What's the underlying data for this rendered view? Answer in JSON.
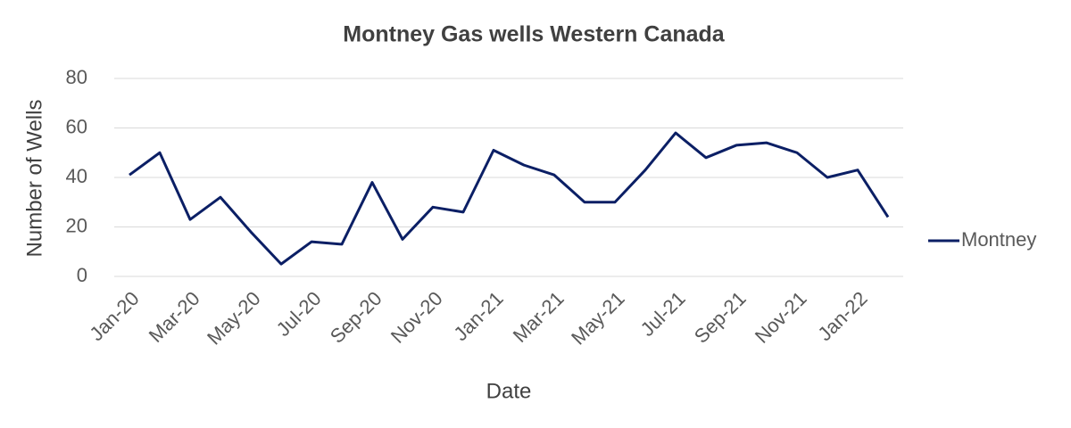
{
  "chart_data": {
    "type": "line",
    "title": "Montney Gas wells Western Canada",
    "x_label": "Date",
    "y_label": "Number of Wells",
    "categories": [
      "Jan-20",
      null,
      "Mar-20",
      null,
      "May-20",
      null,
      "Jul-20",
      null,
      "Sep-20",
      null,
      "Nov-20",
      null,
      "Jan-21",
      null,
      "Mar-21",
      null,
      "May-21",
      null,
      "Jul-21",
      null,
      "Sep-21",
      null,
      "Nov-21",
      null,
      "Jan-22",
      null
    ],
    "series": [
      {
        "name": "Montney",
        "color": "#0b1f65",
        "values": [
          41,
          50,
          23,
          32,
          18,
          5,
          14,
          13,
          38,
          15,
          28,
          26,
          51,
          45,
          41,
          30,
          30,
          43,
          58,
          48,
          53,
          54,
          50,
          40,
          43,
          24
        ]
      }
    ],
    "ylim": [
      0,
      80
    ],
    "yticks": [
      0,
      20,
      40,
      60,
      80
    ],
    "grid": true,
    "legend": "right"
  }
}
